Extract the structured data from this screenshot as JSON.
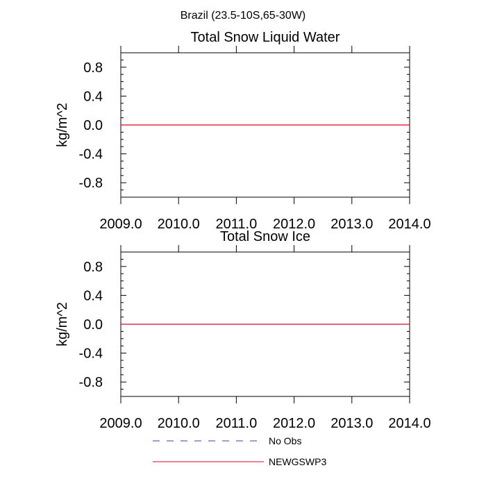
{
  "suptitle": "Brazil (23.5-10S,65-30W)",
  "colors": {
    "obs": "#3b3bb0",
    "model": "#e0002a",
    "axis": "#000000"
  },
  "chart_data": [
    {
      "type": "line",
      "title": "Total Snow Liquid Water",
      "xlabel": "",
      "ylabel": "kg/m^2",
      "xlim": [
        2009.0,
        2014.0
      ],
      "ylim": [
        -1.0,
        1.0
      ],
      "xticks": [
        2009.0,
        2010.0,
        2011.0,
        2012.0,
        2013.0,
        2014.0
      ],
      "xtick_labels": [
        "2009.0",
        "2010.0",
        "2011.0",
        "2012.0",
        "2013.0",
        "2014.0"
      ],
      "yticks": [
        0.8,
        0.4,
        0.0,
        -0.4,
        -0.8
      ],
      "ytick_labels": [
        "0.8",
        "0.4",
        "0.0",
        "-0.4",
        "-0.8"
      ],
      "grid": false,
      "series": [
        {
          "name": "NEWGSWP3",
          "style": "solid",
          "color": "#e0002a",
          "x": [
            2009.0,
            2014.0
          ],
          "y": [
            0.0,
            0.0
          ]
        }
      ]
    },
    {
      "type": "line",
      "title": "Total Snow Ice",
      "xlabel": "",
      "ylabel": "kg/m^2",
      "xlim": [
        2009.0,
        2014.0
      ],
      "ylim": [
        -1.0,
        1.0
      ],
      "xticks": [
        2009.0,
        2010.0,
        2011.0,
        2012.0,
        2013.0,
        2014.0
      ],
      "xtick_labels": [
        "2009.0",
        "2010.0",
        "2011.0",
        "2012.0",
        "2013.0",
        "2014.0"
      ],
      "yticks": [
        0.8,
        0.4,
        0.0,
        -0.4,
        -0.8
      ],
      "ytick_labels": [
        "0.8",
        "0.4",
        "0.0",
        "-0.4",
        "-0.8"
      ],
      "grid": false,
      "series": [
        {
          "name": "NEWGSWP3",
          "style": "solid",
          "color": "#e0002a",
          "x": [
            2009.0,
            2014.0
          ],
          "y": [
            0.0,
            0.0
          ]
        }
      ]
    }
  ],
  "legend": {
    "placement": "bottom",
    "entries": [
      {
        "name": "No Obs",
        "style": "dashed",
        "color": "#3b3bb0"
      },
      {
        "name": "NEWGSWP3",
        "style": "solid",
        "color": "#e0002a"
      }
    ]
  }
}
